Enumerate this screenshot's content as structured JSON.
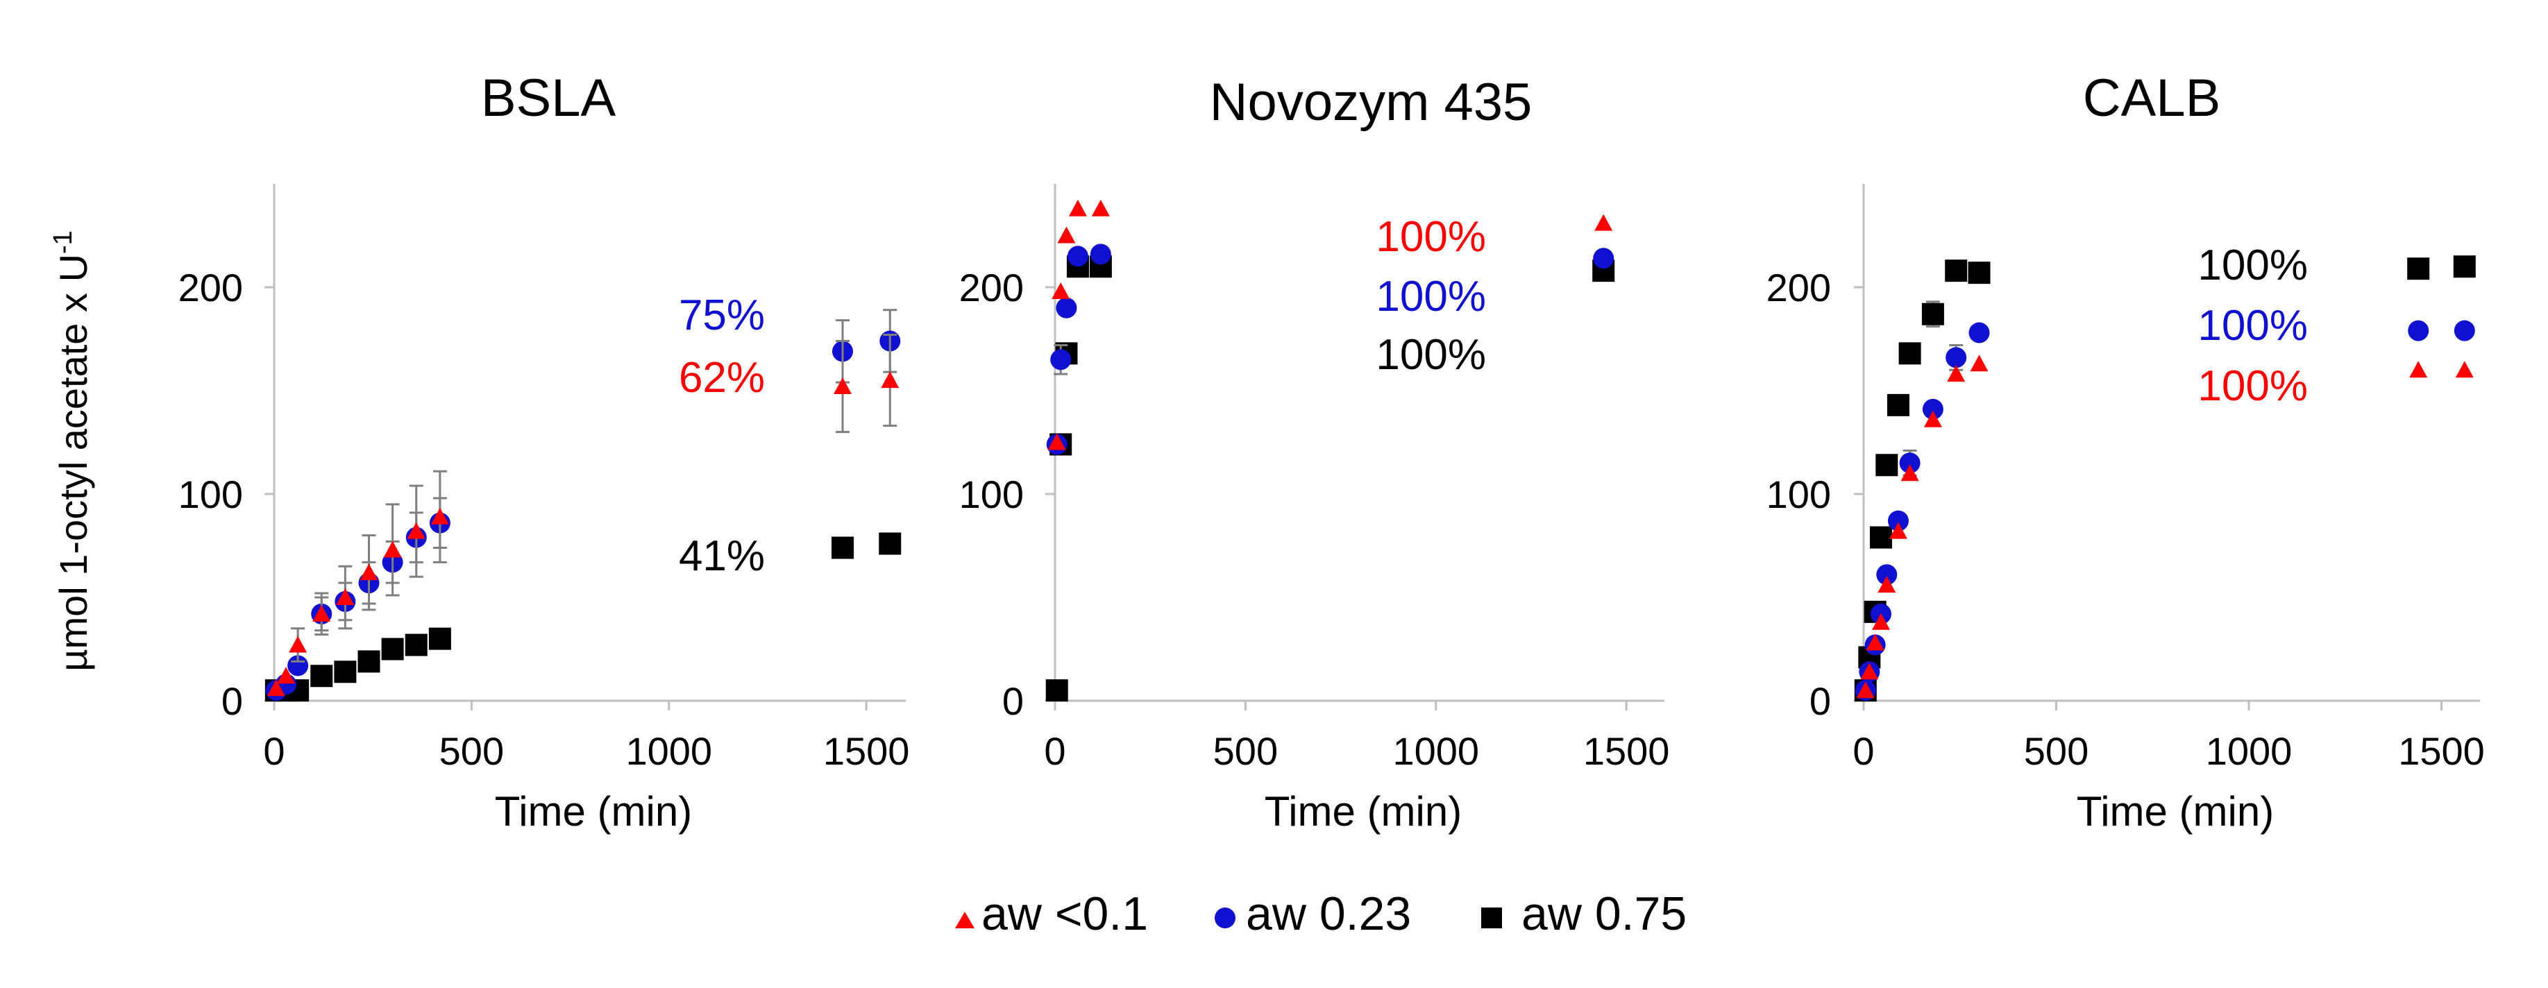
{
  "figure": {
    "ylabel_main": "µmol 1-octyl acetate x U",
    "ylabel_sup": "-1",
    "colors": {
      "aw_lt_0_1": "#ff0000",
      "aw_0_23": "#1010d0",
      "aw_0_75": "#000000",
      "axis": "#bfbfbf",
      "errorbar": "#7f7f7f"
    },
    "legend": [
      {
        "key": "aw_lt_0_1",
        "label": "aw <0.1",
        "marker": "triangle"
      },
      {
        "key": "aw_0_23",
        "label": "aw 0.23",
        "marker": "circle"
      },
      {
        "key": "aw_0_75",
        "label": "aw 0.75",
        "marker": "square"
      }
    ]
  },
  "chart_data": [
    {
      "type": "scatter",
      "title": "BSLA",
      "xlabel": "Time (min)",
      "ylabel": "µmol 1-octyl acetate x U-1",
      "xlim": [
        0,
        1600
      ],
      "ylim": [
        0,
        250
      ],
      "xticks": [
        0,
        500,
        1000,
        1500
      ],
      "yticks": [
        0,
        100,
        200
      ],
      "series": [
        {
          "key": "aw_lt_0_1",
          "name": "aw <0.1",
          "marker": "triangle",
          "x": [
            5,
            30,
            60,
            120,
            180,
            240,
            300,
            360,
            420,
            1440,
            1560
          ],
          "y": [
            6,
            12,
            27,
            42,
            50,
            62,
            73,
            82,
            89,
            152,
            155
          ],
          "err": [
            0,
            0,
            8,
            10,
            15,
            18,
            22,
            22,
            22,
            22,
            22
          ]
        },
        {
          "key": "aw_0_23",
          "name": "aw 0.23",
          "marker": "circle",
          "x": [
            5,
            30,
            60,
            120,
            180,
            240,
            300,
            360,
            420,
            1440,
            1560
          ],
          "y": [
            5,
            8,
            17,
            42,
            48,
            57,
            67,
            79,
            86,
            169,
            174
          ],
          "err": [
            0,
            0,
            0,
            8,
            9,
            10,
            10,
            12,
            12,
            15,
            15
          ]
        },
        {
          "key": "aw_0_75",
          "name": "aw 0.75",
          "marker": "square",
          "x": [
            5,
            30,
            60,
            120,
            180,
            240,
            300,
            360,
            420,
            1440,
            1560
          ],
          "y": [
            5,
            5,
            5,
            12,
            14,
            19,
            25,
            27,
            30,
            74,
            76
          ],
          "err": [
            0,
            0,
            0,
            0,
            0,
            0,
            0,
            0,
            0,
            0,
            0
          ]
        }
      ],
      "annotations": [
        {
          "key": "aw_0_23",
          "text": "75%"
        },
        {
          "key": "aw_lt_0_1",
          "text": "62%"
        },
        {
          "key": "aw_0_75",
          "text": "41%"
        }
      ]
    },
    {
      "type": "scatter",
      "title": "Novozym  435",
      "xlabel": "Time (min)",
      "ylabel": "µmol 1-octyl acetate x U-1",
      "xlim": [
        0,
        1600
      ],
      "ylim": [
        0,
        250
      ],
      "xticks": [
        0,
        500,
        1000,
        1500
      ],
      "yticks": [
        0,
        100,
        200
      ],
      "series": [
        {
          "key": "aw_lt_0_1",
          "name": "aw <0.1",
          "marker": "triangle",
          "x": [
            5,
            15,
            30,
            60,
            120,
            1440
          ],
          "y": [
            125,
            198,
            225,
            238,
            238,
            231
          ],
          "err": [
            0,
            0,
            0,
            0,
            0,
            0
          ]
        },
        {
          "key": "aw_0_23",
          "name": "aw 0.23",
          "marker": "circle",
          "x": [
            5,
            15,
            30,
            60,
            120,
            1440
          ],
          "y": [
            124,
            165,
            190,
            215,
            216,
            214
          ],
          "err": [
            0,
            7,
            0,
            0,
            0,
            0
          ]
        },
        {
          "key": "aw_0_75",
          "name": "aw 0.75",
          "marker": "square",
          "x": [
            5,
            15,
            30,
            60,
            120,
            1440
          ],
          "y": [
            5,
            124,
            168,
            210,
            210,
            208
          ],
          "err": [
            0,
            0,
            0,
            0,
            0,
            0
          ]
        }
      ],
      "annotations": [
        {
          "key": "aw_lt_0_1",
          "text": "100%"
        },
        {
          "key": "aw_0_23",
          "text": "100%"
        },
        {
          "key": "aw_0_75",
          "text": "100%"
        }
      ]
    },
    {
      "type": "scatter",
      "title": "CALB",
      "xlabel": "Time (min)",
      "ylabel": "µmol 1-octyl acetate x U-1",
      "xlim": [
        0,
        1600
      ],
      "ylim": [
        0,
        250
      ],
      "xticks": [
        0,
        500,
        1000,
        1500
      ],
      "yticks": [
        0,
        100,
        200
      ],
      "series": [
        {
          "key": "aw_lt_0_1",
          "name": "aw <0.1",
          "marker": "triangle",
          "x": [
            5,
            15,
            30,
            45,
            60,
            90,
            120,
            180,
            240,
            300,
            1440,
            1560
          ],
          "y": [
            5,
            14,
            28,
            38,
            56,
            82,
            110,
            136,
            158,
            163,
            160,
            160
          ],
          "err": [
            0,
            0,
            0,
            0,
            0,
            0,
            0,
            0,
            0,
            0,
            0,
            0
          ]
        },
        {
          "key": "aw_0_23",
          "name": "aw 0.23",
          "marker": "circle",
          "x": [
            5,
            15,
            30,
            45,
            60,
            90,
            120,
            180,
            240,
            300,
            1440,
            1560
          ],
          "y": [
            5,
            14,
            27,
            42,
            61,
            87,
            115,
            141,
            166,
            178,
            179,
            179
          ],
          "err": [
            0,
            0,
            0,
            0,
            0,
            0,
            6,
            0,
            6,
            0,
            0,
            0
          ]
        },
        {
          "key": "aw_0_75",
          "name": "aw 0.75",
          "marker": "square",
          "x": [
            5,
            15,
            30,
            45,
            60,
            90,
            120,
            180,
            240,
            300,
            1440,
            1560
          ],
          "y": [
            5,
            21,
            43,
            79,
            114,
            143,
            168,
            187,
            208,
            207,
            209,
            210
          ],
          "err": [
            0,
            0,
            0,
            0,
            0,
            0,
            0,
            6,
            0,
            0,
            0,
            0
          ]
        }
      ],
      "annotations": [
        {
          "key": "aw_0_75",
          "text": "100%"
        },
        {
          "key": "aw_0_23",
          "text": "100%"
        },
        {
          "key": "aw_lt_0_1",
          "text": "100%"
        }
      ]
    }
  ]
}
